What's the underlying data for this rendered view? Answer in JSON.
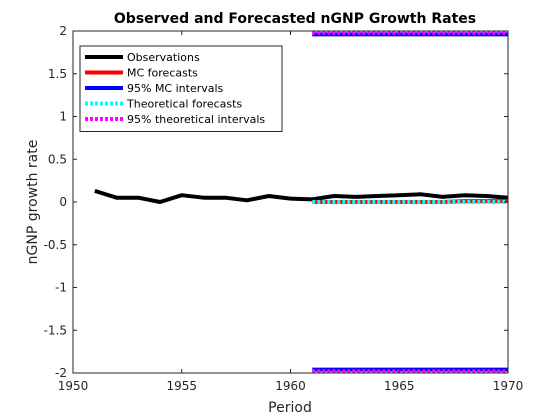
{
  "chart_data": {
    "type": "line",
    "title": "Observed and Forecasted nGNP Growth Rates",
    "xlabel": "Period",
    "ylabel": "nGNP growth rate",
    "xlim": [
      1950,
      1970
    ],
    "ylim": [
      -2,
      2
    ],
    "xticks": [
      1950,
      1955,
      1960,
      1965,
      1970
    ],
    "xtick_labels": [
      "1950",
      "1955",
      "1960",
      "1965",
      "1970"
    ],
    "yticks": [
      -2,
      -1.5,
      -1,
      -0.5,
      0,
      0.5,
      1,
      1.5,
      2
    ],
    "ytick_labels": [
      "-2",
      "-1.5",
      "-1",
      "-0.5",
      "0",
      "0.5",
      "1",
      "1.5",
      "2"
    ],
    "grid": false,
    "legend_position": "top-left",
    "series": [
      {
        "name": "Observations",
        "color": "#000000",
        "style": "solid",
        "x": [
          1951,
          1952,
          1953,
          1954,
          1955,
          1956,
          1957,
          1958,
          1959,
          1960,
          1961,
          1962,
          1963,
          1964,
          1965,
          1966,
          1967,
          1968,
          1969,
          1970
        ],
        "y": [
          0.13,
          0.05,
          0.05,
          0.0,
          0.08,
          0.05,
          0.05,
          0.02,
          0.07,
          0.04,
          0.03,
          0.07,
          0.06,
          0.07,
          0.08,
          0.09,
          0.06,
          0.08,
          0.07,
          0.05
        ]
      },
      {
        "name": "MC forecasts",
        "color": "#ff0000",
        "style": "solid",
        "x": [
          1961,
          1962,
          1963,
          1964,
          1965,
          1966,
          1967,
          1968,
          1969,
          1970
        ],
        "y": [
          0.0,
          0.0,
          0.0,
          0.0,
          0.0,
          0.0,
          0.0,
          0.01,
          0.01,
          0.01
        ]
      },
      {
        "name": "95% MC intervals",
        "color": "#0000ff",
        "style": "solid",
        "x": [
          1961,
          1970
        ],
        "y_upper": [
          1.96,
          1.96
        ],
        "y_lower": [
          -1.96,
          -1.96
        ]
      },
      {
        "name": "Theoretical forecasts",
        "color": "#00ffff",
        "style": "dotted",
        "x": [
          1961,
          1962,
          1963,
          1964,
          1965,
          1966,
          1967,
          1968,
          1969,
          1970
        ],
        "y": [
          0.0,
          0.0,
          0.0,
          0.0,
          0.0,
          0.0,
          0.0,
          0.0,
          0.0,
          0.0
        ]
      },
      {
        "name": "95% theoretical intervals",
        "color": "#ff00ff",
        "style": "dotted",
        "x": [
          1961,
          1970
        ],
        "y_upper": [
          1.98,
          1.98
        ],
        "y_lower": [
          -1.98,
          -1.98
        ]
      }
    ]
  }
}
